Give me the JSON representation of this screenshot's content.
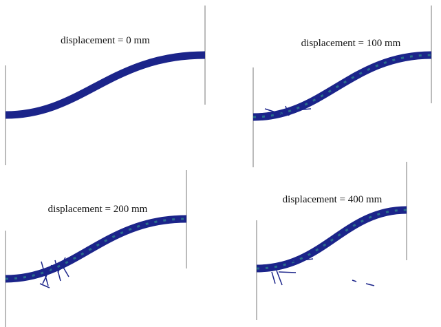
{
  "panels": [
    {
      "label": "displacement = 0 mm"
    },
    {
      "label": "displacement = 100 mm"
    },
    {
      "label": "displacement = 200 mm"
    },
    {
      "label": "displacement = 400 mm"
    }
  ]
}
